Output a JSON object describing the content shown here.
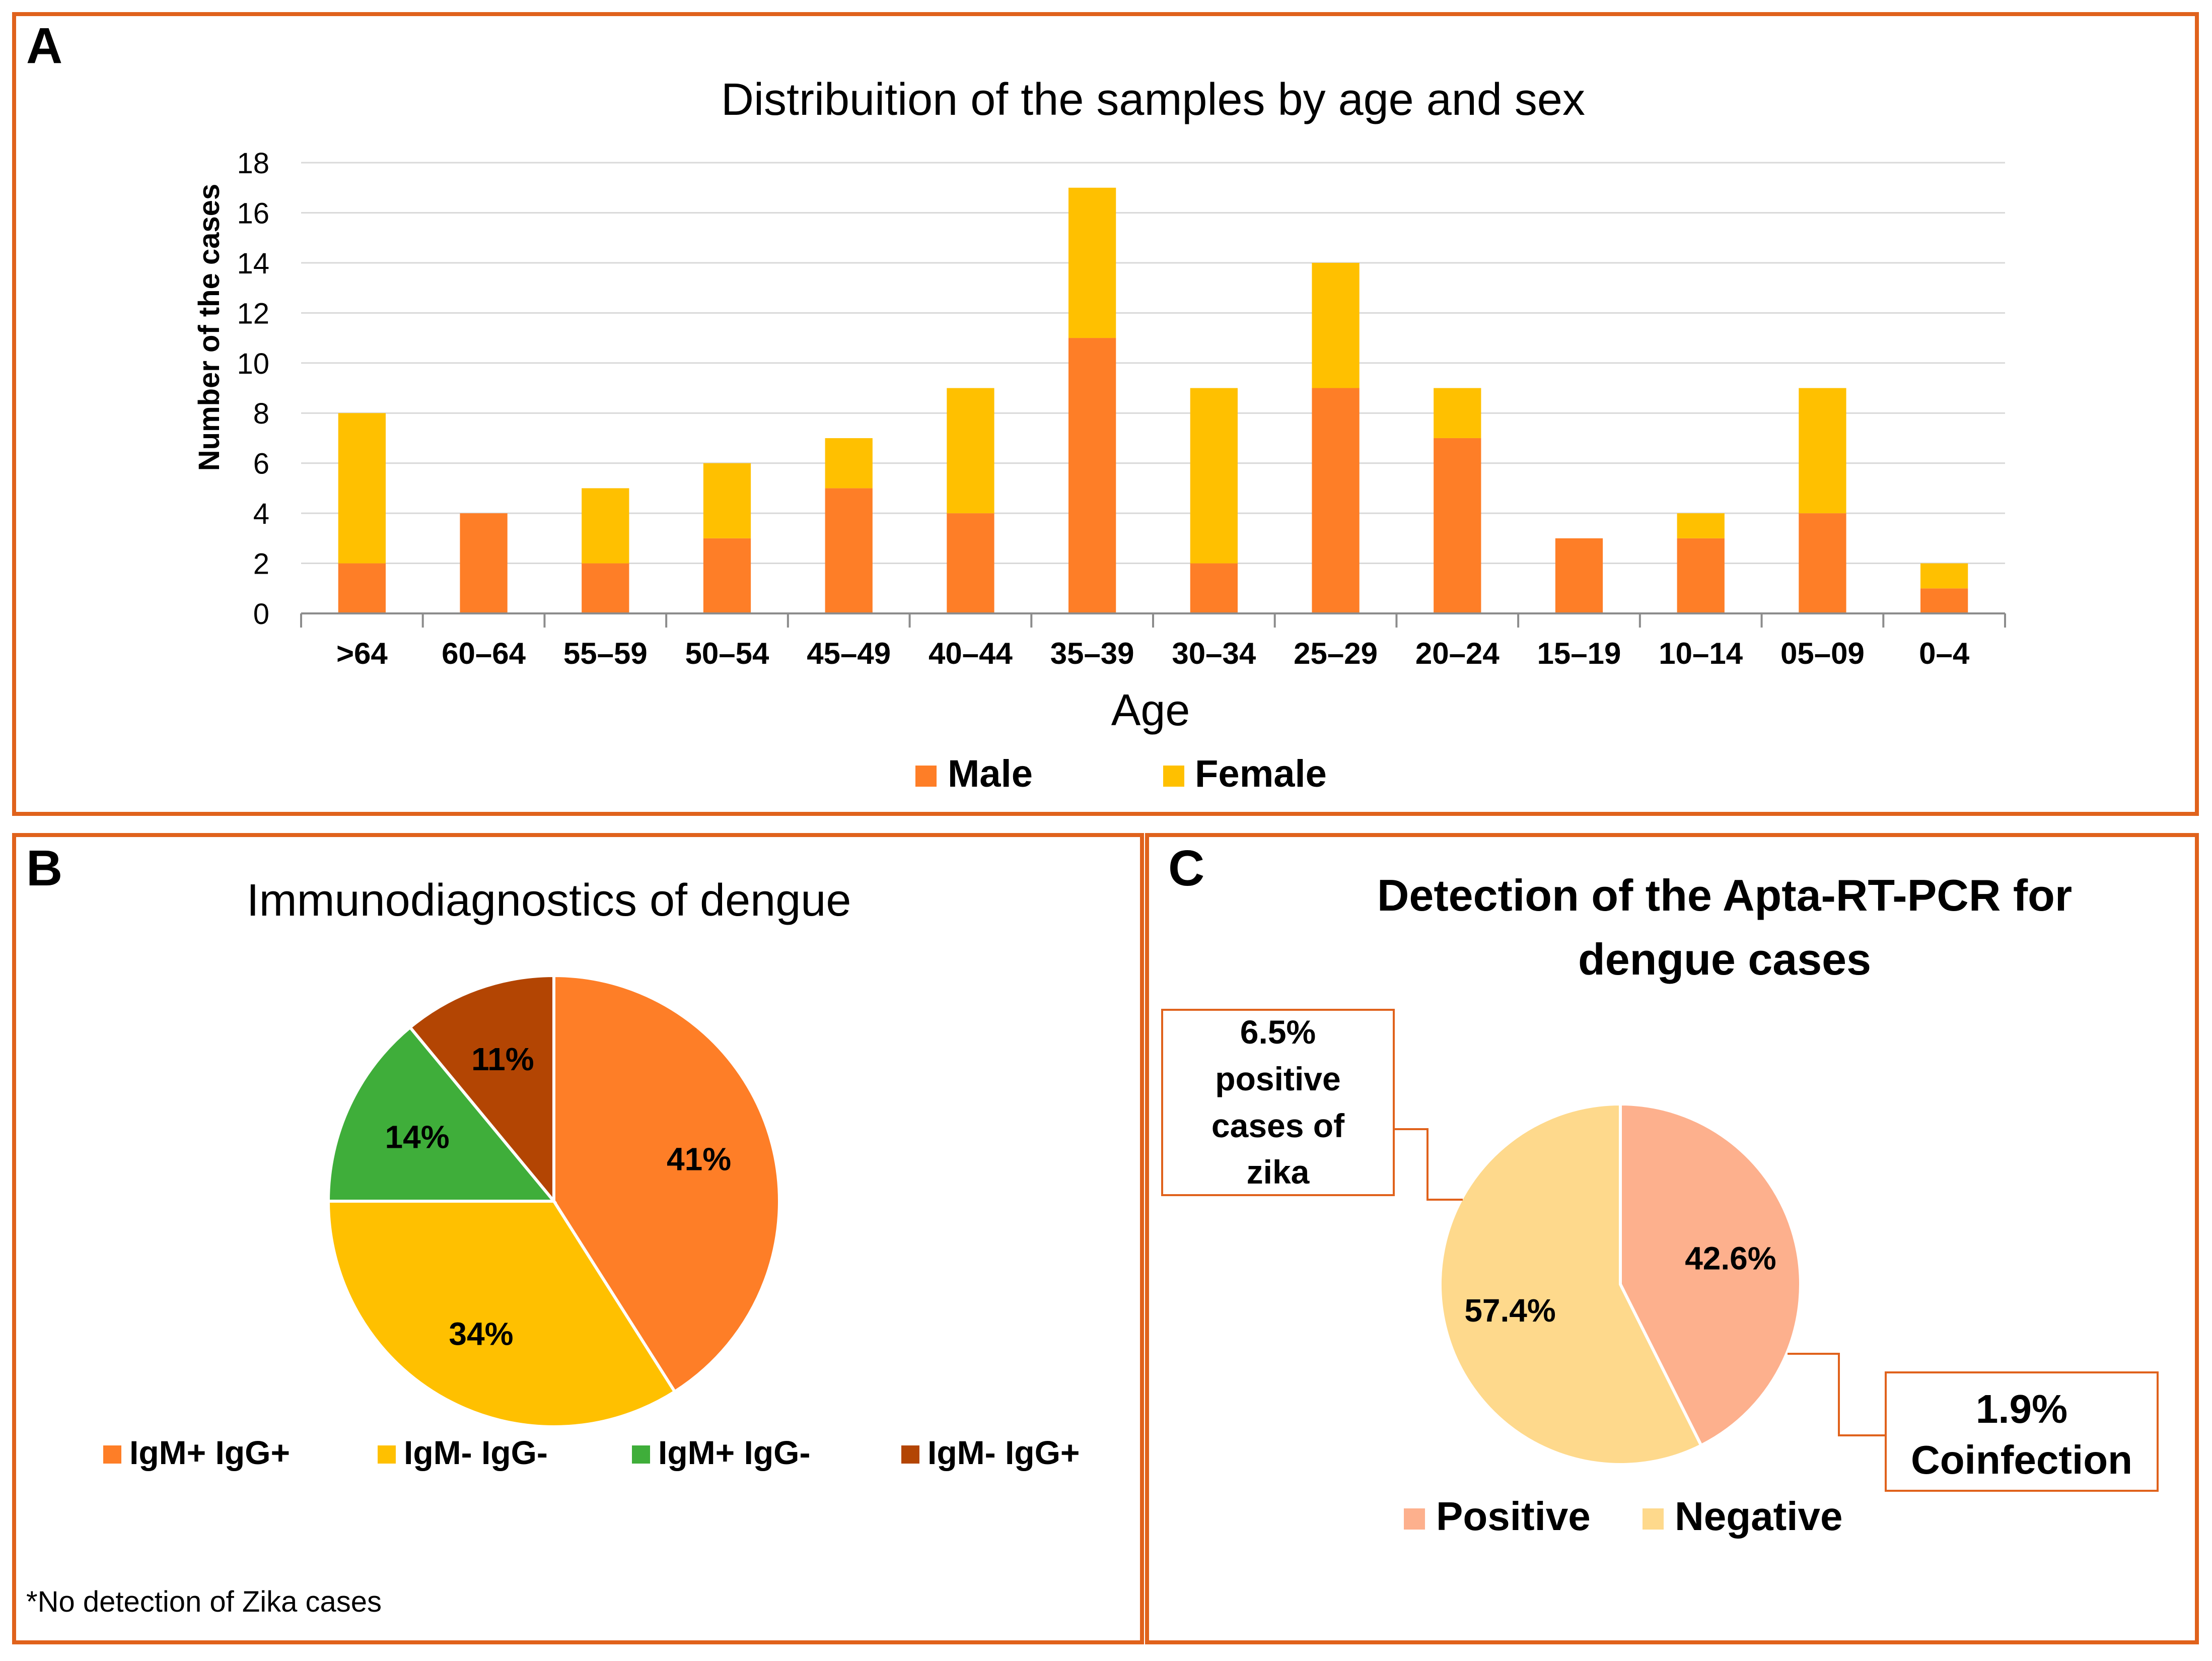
{
  "colors": {
    "frame": "#e0621c",
    "male": "#fe7e27",
    "female": "#ffc000",
    "grid": "#d9d9d9",
    "axis": "#8c8c8c",
    "igm_pos_igg_pos": "#fe7e27",
    "igm_neg_igg_neg": "#ffc000",
    "igm_pos_igg_neg": "#3fae3a",
    "igm_neg_igg_pos": "#b34503",
    "positive": "#fdb08d",
    "negative": "#fed98c",
    "callout_border": "#e0621c"
  },
  "chart_data": [
    {
      "panel": "A",
      "type": "bar",
      "stacked": true,
      "title": "Distribuition of the samples by age and sex",
      "xlabel": "Age",
      "ylabel": "Number of the cases",
      "ylim": [
        0,
        18
      ],
      "yticks": [
        "0",
        "2",
        "4",
        "6",
        "8",
        "10",
        "12",
        "14",
        "16",
        "18"
      ],
      "categories": [
        ">64",
        "60–64",
        "55–59",
        "50–54",
        "45–49",
        "40–44",
        "35–39",
        "30–34",
        "25–29",
        "20–24",
        "15–19",
        "10–14",
        "05–09",
        "0–4"
      ],
      "series": [
        {
          "name": "Male",
          "values": [
            2,
            4,
            2,
            3,
            5,
            4,
            11,
            2,
            9,
            7,
            3,
            3,
            4,
            1
          ]
        },
        {
          "name": "Female",
          "values": [
            6,
            0,
            3,
            3,
            2,
            5,
            6,
            7,
            5,
            2,
            0,
            1,
            5,
            1
          ]
        }
      ],
      "legend": [
        "Male",
        "Female"
      ],
      "legend_position": "bottom"
    },
    {
      "panel": "B",
      "type": "pie",
      "title": "Immunodiagnostics of dengue",
      "slices": [
        {
          "label": "IgM+ IgG+",
          "value": 41,
          "text": "41%"
        },
        {
          "label": "IgM- IgG-",
          "value": 34,
          "text": "34%"
        },
        {
          "label": "IgM+ IgG-",
          "value": 14,
          "text": "14%"
        },
        {
          "label": "IgM- IgG+",
          "value": 11,
          "text": "11%"
        }
      ],
      "legend_position": "bottom",
      "footnote": "*No detection of Zika cases"
    },
    {
      "panel": "C",
      "type": "pie",
      "title_lines": [
        "Detection of the Apta-RT-PCR for",
        "dengue cases"
      ],
      "slices": [
        {
          "label": "Positive",
          "value": 42.6,
          "text": "42.6%"
        },
        {
          "label": "Negative",
          "value": 57.4,
          "text": "57.4%"
        }
      ],
      "annotations": [
        {
          "lines": [
            "6.5%",
            "positive",
            "cases of",
            "zika"
          ]
        },
        {
          "lines": [
            "1.9%",
            "Coinfection"
          ]
        }
      ],
      "legend_position": "bottom"
    }
  ],
  "panels": {
    "a": "A",
    "b": "B",
    "c": "C"
  }
}
